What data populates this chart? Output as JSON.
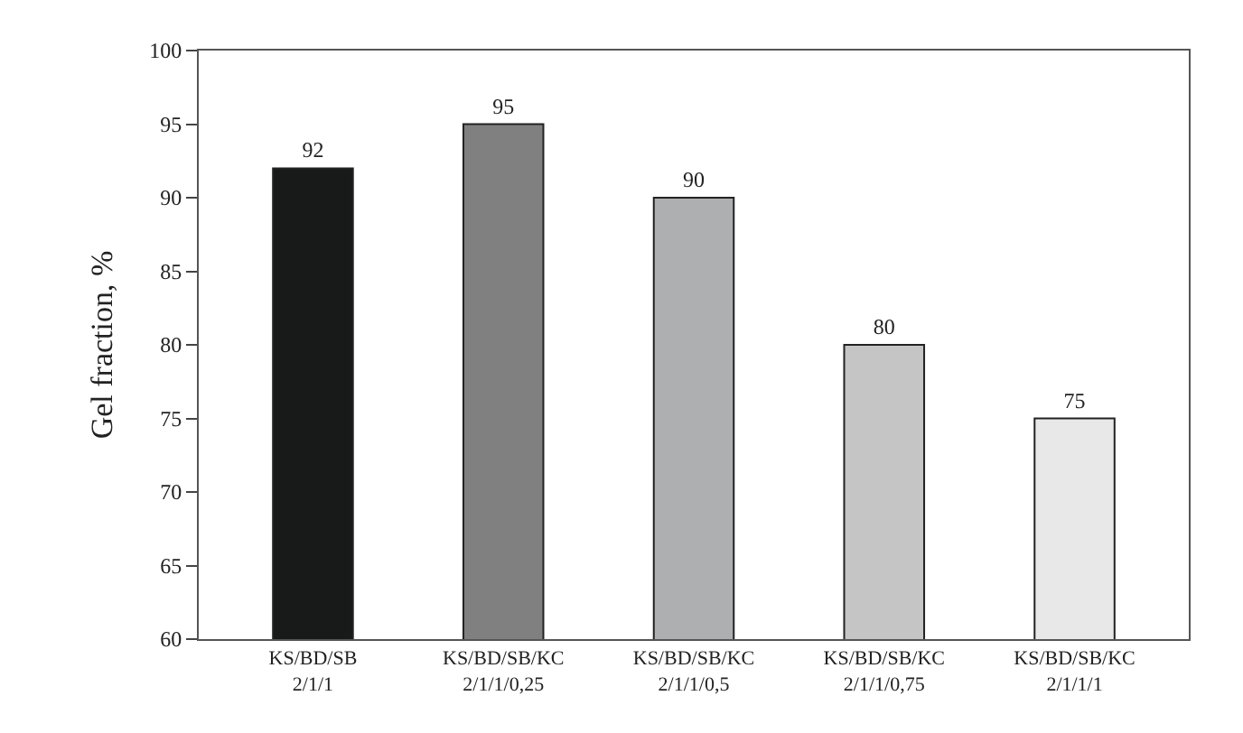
{
  "chart_data": {
    "type": "bar",
    "ylabel": "Gel fraction, %",
    "categories": [
      "KS/BD/SB\n2/1/1",
      "KS/BD/SB/KC\n2/1/1/0,25",
      "KS/BD/SB/KC\n2/1/1/0,5",
      "KS/BD/SB/KC\n2/1/1/0,75",
      "KS/BD/SB/KC\n2/1/1/1"
    ],
    "values": [
      92,
      95,
      90,
      80,
      75
    ],
    "colors": [
      "#181a19",
      "#808080",
      "#aeafb0",
      "#c4c5c4",
      "#e8e8e8"
    ],
    "ylim": [
      60,
      100
    ],
    "yticks": [
      60,
      65,
      70,
      75,
      80,
      85,
      90,
      95,
      100
    ],
    "data_labels": true,
    "legend": false
  }
}
